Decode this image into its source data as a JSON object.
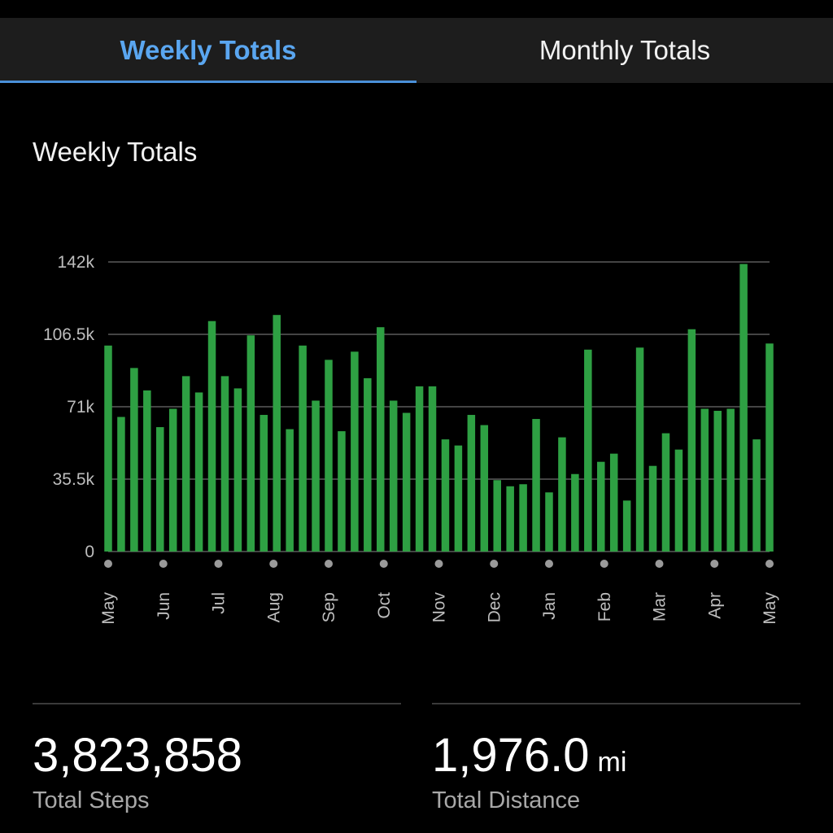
{
  "tabs": [
    {
      "label": "Weekly Totals",
      "active": true
    },
    {
      "label": "Monthly Totals",
      "active": false
    }
  ],
  "section_title": "Weekly Totals",
  "chart_data": {
    "type": "bar",
    "title": "",
    "xlabel": "",
    "ylabel": "",
    "ylim": [
      0,
      142000
    ],
    "yticks": [
      0,
      35500,
      71000,
      106500,
      142000
    ],
    "ytick_labels": [
      "0",
      "35.5k",
      "71k",
      "106.5k",
      "142k"
    ],
    "month_labels": [
      "May",
      "Jun",
      "Jul",
      "Aug",
      "Sep",
      "Oct",
      "Nov",
      "Dec",
      "Jan",
      "Feb",
      "Mar",
      "Apr",
      "May"
    ],
    "grid": true,
    "bar_color": "#2ea043",
    "values": [
      101000,
      66000,
      90000,
      79000,
      61000,
      70000,
      86000,
      78000,
      113000,
      86000,
      80000,
      106000,
      67000,
      116000,
      60000,
      101000,
      74000,
      94000,
      59000,
      98000,
      85000,
      110000,
      74000,
      68000,
      81000,
      81000,
      55000,
      52000,
      67000,
      62000,
      35000,
      32000,
      33000,
      65000,
      29000,
      56000,
      38000,
      99000,
      44000,
      48000,
      25000,
      100000,
      42000,
      58000,
      50000,
      109000,
      70000,
      69000,
      70000,
      141000,
      55000,
      102000
    ]
  },
  "stats": {
    "steps_value": "3,823,858",
    "steps_label": "Total Steps",
    "distance_value": "1,976.0",
    "distance_unit": "mi",
    "distance_label": "Total Distance"
  },
  "colors": {
    "background": "#000000",
    "tab_bar": "#1d1d1d",
    "accent": "#4a90d9",
    "bar": "#2ea043"
  }
}
